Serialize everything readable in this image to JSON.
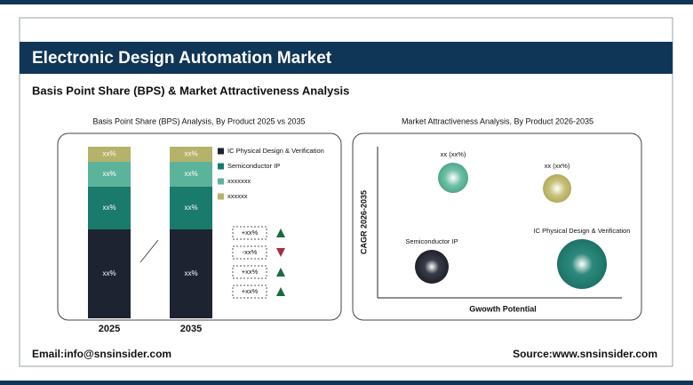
{
  "header": {
    "title": "Electronic Design Automation Market",
    "subtitle": "Basis Point Share (BPS) & Market Attractiveness Analysis"
  },
  "bps_panel": {
    "title": "Basis Point Share (BPS) Analysis, By Product 2025 vs 2035",
    "bars": [
      {
        "year": "2025",
        "segments": [
          "xx%",
          "xx%",
          "xx%",
          "xx%"
        ]
      },
      {
        "year": "2035",
        "segments": [
          "xx%",
          "xx%",
          "xx%",
          "xx%"
        ]
      }
    ],
    "legend": [
      "IC Physical Design & Verification",
      "Semiconductor IP",
      "xxxxxxx",
      "xxxxxx"
    ],
    "changes": [
      "+xx%",
      "-xx%",
      "+xx%",
      "+xx%"
    ]
  },
  "attractiveness_panel": {
    "title": "Market Attractiveness Analysis, By Product 2026-2035",
    "y_label": "CAGR 2026-2035",
    "x_label": "Gwowth Potential",
    "bubbles": [
      "xx (xx%)",
      "xx (xx%)",
      "Semiconductor IP",
      "IC Physical Design & Verification"
    ]
  },
  "footer": {
    "email": "Email:info@snsinsider.com",
    "source": "Source:www.snsinsider.com"
  }
}
